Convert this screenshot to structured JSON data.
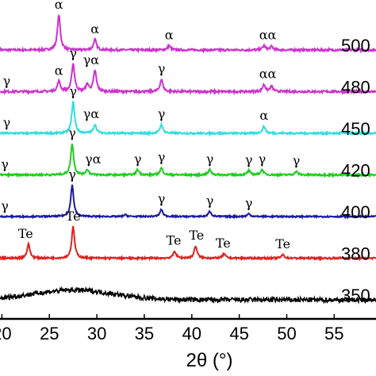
{
  "chart_data": {
    "type": "line",
    "xlabel": "2θ (°)",
    "ylabel": "",
    "xlim": [
      20,
      60
    ],
    "x_ticks": [
      "20",
      "25",
      "30",
      "35",
      "40",
      "45",
      "50",
      "55"
    ],
    "grid": false,
    "legend": "none",
    "series": [
      {
        "name": "500",
        "color": "#cc33cc",
        "baseline": 6,
        "noise": 0.06,
        "peaks": [
          [
            26.0,
            1.0
          ],
          [
            29.8,
            0.3
          ],
          [
            37.6,
            0.12
          ],
          [
            47.6,
            0.12
          ],
          [
            48.4,
            0.1
          ]
        ],
        "labels": [
          {
            "text": "α",
            "x": 26.0
          },
          {
            "text": "α",
            "x": 29.8
          },
          {
            "text": "α",
            "x": 37.6
          },
          {
            "text": "αα",
            "x": 48.0
          }
        ]
      },
      {
        "name": "480",
        "color": "#cc33cc",
        "baseline": 5,
        "noise": 0.06,
        "peaks": [
          [
            26.0,
            0.3
          ],
          [
            27.5,
            0.8
          ],
          [
            29.0,
            0.2
          ],
          [
            29.8,
            0.6
          ],
          [
            36.8,
            0.35
          ],
          [
            47.6,
            0.2
          ],
          [
            48.4,
            0.15
          ]
        ],
        "labels": [
          {
            "text": "γ",
            "x": 20.5
          },
          {
            "text": "α",
            "x": 26.0
          },
          {
            "text": "γ",
            "x": 27.5
          },
          {
            "text": "γα",
            "x": 29.4
          },
          {
            "text": "γ",
            "x": 36.8
          },
          {
            "text": "αα",
            "x": 48.0
          }
        ]
      },
      {
        "name": "450",
        "color": "#33dddd",
        "baseline": 4,
        "noise": 0.05,
        "peaks": [
          [
            27.5,
            0.9
          ],
          [
            29.8,
            0.25
          ],
          [
            36.8,
            0.25
          ],
          [
            47.6,
            0.2
          ]
        ],
        "labels": [
          {
            "text": "γ",
            "x": 20.5
          },
          {
            "text": "γ",
            "x": 27.5
          },
          {
            "text": "γα",
            "x": 29.4
          },
          {
            "text": "γ",
            "x": 36.8
          },
          {
            "text": "α",
            "x": 47.6
          }
        ]
      },
      {
        "name": "420",
        "color": "#22cc22",
        "baseline": 3,
        "noise": 0.05,
        "peaks": [
          [
            27.4,
            0.9
          ],
          [
            29.0,
            0.15
          ],
          [
            34.3,
            0.15
          ],
          [
            36.8,
            0.2
          ],
          [
            41.9,
            0.15
          ],
          [
            46.0,
            0.12
          ],
          [
            47.4,
            0.15
          ],
          [
            51.0,
            0.1
          ]
        ],
        "labels": [
          {
            "text": "γ",
            "x": 20.3
          },
          {
            "text": "γ",
            "x": 27.4
          },
          {
            "text": "γα",
            "x": 29.6
          },
          {
            "text": "γ",
            "x": 34.3
          },
          {
            "text": "γ",
            "x": 36.8
          },
          {
            "text": "γ",
            "x": 41.9
          },
          {
            "text": "γ",
            "x": 46.0
          },
          {
            "text": "γ",
            "x": 47.4
          },
          {
            "text": "γ",
            "x": 51.0
          }
        ]
      },
      {
        "name": "400",
        "color": "#1a1aa0",
        "baseline": 2,
        "noise": 0.04,
        "peaks": [
          [
            27.4,
            0.9
          ],
          [
            33.0,
            0.05
          ],
          [
            36.8,
            0.2
          ],
          [
            41.9,
            0.15
          ],
          [
            46.0,
            0.08
          ]
        ],
        "labels": [
          {
            "text": "γ",
            "x": 20.3
          },
          {
            "text": "γ",
            "x": 27.4
          },
          {
            "text": "γ",
            "x": 36.8
          },
          {
            "text": "γ",
            "x": 41.9
          },
          {
            "text": "γ",
            "x": 46.0
          }
        ]
      },
      {
        "name": "380",
        "color": "#dd2222",
        "baseline": 1,
        "noise": 0.05,
        "peaks": [
          [
            22.8,
            0.4
          ],
          [
            27.5,
            0.9
          ],
          [
            38.2,
            0.2
          ],
          [
            40.4,
            0.35
          ],
          [
            43.4,
            0.12
          ],
          [
            49.6,
            0.1
          ]
        ],
        "labels": [
          {
            "text": "Te",
            "x": 22.5
          },
          {
            "text": "Te",
            "x": 27.5
          },
          {
            "text": "Te",
            "x": 38.1
          },
          {
            "text": "Te",
            "x": 40.5
          },
          {
            "text": "Te",
            "x": 43.3
          },
          {
            "text": "Te",
            "x": 49.6
          }
        ]
      },
      {
        "name": "350",
        "color": "#000000",
        "baseline": 0,
        "noise": 0.14,
        "peaks": [],
        "hump": {
          "center": 27.5,
          "height": 0.28,
          "width": 6.0
        },
        "labels": []
      }
    ]
  }
}
